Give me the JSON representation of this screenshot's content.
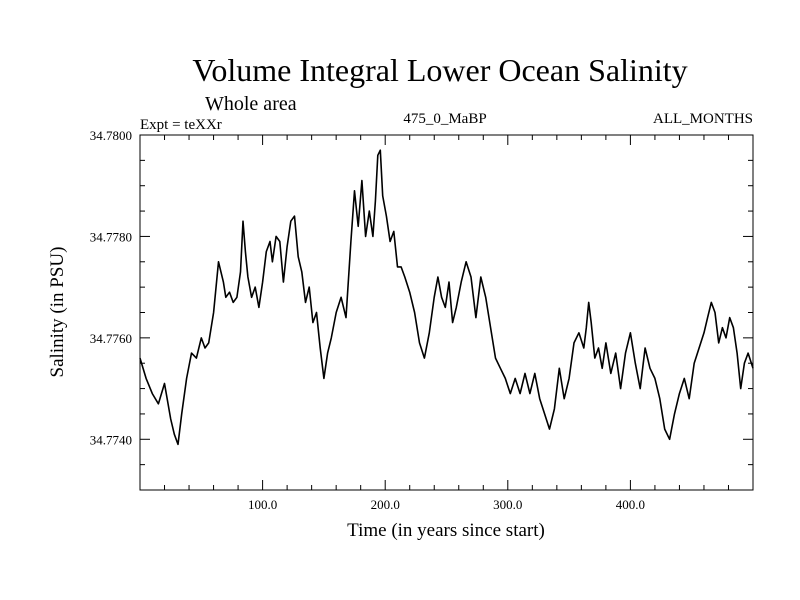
{
  "chart_data": {
    "type": "line",
    "title": "Volume Integral Lower Ocean Salinity",
    "subtitle": "Whole area",
    "experiment": "Expt = teXXr",
    "period": "475_0_MaBP",
    "months": "ALL_MONTHS",
    "xlabel": "Time (in years since start)",
    "ylabel": "Salinity (in PSU)",
    "xlim": [
      0,
      500
    ],
    "ylim": [
      34.773,
      34.78
    ],
    "xticks": [
      {
        "value": 100,
        "label": "100.0"
      },
      {
        "value": 200,
        "label": "200.0"
      },
      {
        "value": 300,
        "label": "300.0"
      },
      {
        "value": 400,
        "label": "400.0"
      }
    ],
    "yticks": [
      {
        "value": 34.774,
        "label": "34.7740"
      },
      {
        "value": 34.776,
        "label": "34.7760"
      },
      {
        "value": 34.778,
        "label": "34.7780"
      },
      {
        "value": 34.78,
        "label": "34.7800"
      }
    ],
    "grid": false,
    "series": [
      {
        "name": "salinity",
        "color": "#000000",
        "x": [
          0,
          5,
          10,
          15,
          20,
          25,
          28,
          31,
          34,
          38,
          42,
          46,
          50,
          53,
          56,
          60,
          64,
          68,
          70,
          73,
          76,
          79,
          82,
          84,
          86,
          88,
          91,
          94,
          97,
          100,
          103,
          106,
          108,
          111,
          114,
          117,
          120,
          123,
          126,
          129,
          132,
          135,
          138,
          141,
          144,
          147,
          150,
          153,
          156,
          160,
          164,
          168,
          172,
          175,
          178,
          181,
          184,
          187,
          190,
          192,
          194,
          196,
          198,
          201,
          204,
          207,
          210,
          213,
          216,
          220,
          224,
          228,
          232,
          236,
          240,
          243,
          246,
          249,
          252,
          255,
          258,
          262,
          266,
          270,
          274,
          278,
          282,
          286,
          290,
          294,
          298,
          302,
          306,
          310,
          314,
          318,
          322,
          326,
          330,
          334,
          338,
          342,
          346,
          350,
          354,
          358,
          362,
          364,
          366,
          368,
          371,
          374,
          377,
          380,
          384,
          388,
          392,
          396,
          400,
          404,
          408,
          412,
          416,
          420,
          424,
          428,
          432,
          436,
          440,
          444,
          448,
          452,
          456,
          460,
          463,
          466,
          469,
          472,
          475,
          478,
          481,
          484,
          487,
          490,
          493,
          496,
          500
        ],
        "y": [
          34.7756,
          34.7752,
          34.7749,
          34.7747,
          34.7751,
          34.7744,
          34.7741,
          34.7739,
          34.7745,
          34.7752,
          34.7757,
          34.7756,
          34.776,
          34.7758,
          34.7759,
          34.7765,
          34.7775,
          34.7771,
          34.7768,
          34.7769,
          34.7767,
          34.7768,
          34.7773,
          34.7783,
          34.7777,
          34.7772,
          34.7768,
          34.777,
          34.7766,
          34.7771,
          34.7777,
          34.7779,
          34.7775,
          34.778,
          34.7779,
          34.7771,
          34.7778,
          34.7783,
          34.7784,
          34.7776,
          34.7773,
          34.7767,
          34.777,
          34.7763,
          34.7765,
          34.7758,
          34.7752,
          34.7757,
          34.776,
          34.7765,
          34.7768,
          34.7764,
          34.7779,
          34.7789,
          34.7782,
          34.7791,
          34.778,
          34.7785,
          34.778,
          34.7787,
          34.7796,
          34.7797,
          34.7788,
          34.7784,
          34.7779,
          34.7781,
          34.7774,
          34.7774,
          34.7772,
          34.7769,
          34.7765,
          34.7759,
          34.7756,
          34.7761,
          34.7768,
          34.7772,
          34.7768,
          34.7766,
          34.7771,
          34.7763,
          34.7766,
          34.7771,
          34.7775,
          34.7772,
          34.7764,
          34.7772,
          34.7768,
          34.7762,
          34.7756,
          34.7754,
          34.7752,
          34.7749,
          34.7752,
          34.7749,
          34.7753,
          34.7749,
          34.7753,
          34.7748,
          34.7745,
          34.7742,
          34.7746,
          34.7754,
          34.7748,
          34.7752,
          34.7759,
          34.7761,
          34.7758,
          34.7762,
          34.7767,
          34.7763,
          34.7756,
          34.7758,
          34.7754,
          34.7759,
          34.7753,
          34.7757,
          34.775,
          34.7757,
          34.7761,
          34.7755,
          34.775,
          34.7758,
          34.7754,
          34.7752,
          34.7748,
          34.7742,
          34.774,
          34.7745,
          34.7749,
          34.7752,
          34.7748,
          34.7755,
          34.7758,
          34.7761,
          34.7764,
          34.7767,
          34.7765,
          34.7759,
          34.7762,
          34.776,
          34.7764,
          34.7762,
          34.7757,
          34.775,
          34.7755,
          34.7757,
          34.7754
        ]
      }
    ]
  }
}
